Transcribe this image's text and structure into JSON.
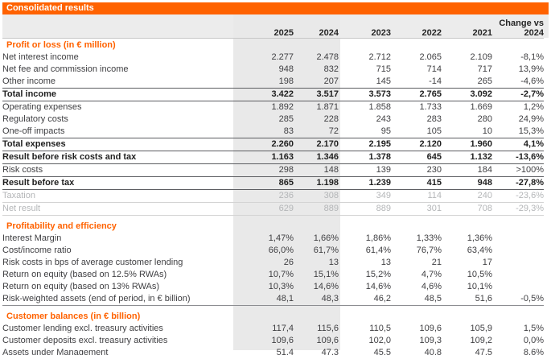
{
  "colors": {
    "accent_orange": "#FF6200",
    "band_gray": "#E9E9E9",
    "header_row_gray": "#ECECEC",
    "muted_text": "#B4B6B8"
  },
  "chart_data": {
    "type": "table",
    "title": "Consolidated results",
    "columns": [
      "2025",
      "2024",
      "2023",
      "2022",
      "2021",
      "Change vs 2024"
    ],
    "sections": [
      {
        "header": "Profit or loss (in € million)",
        "rows": [
          {
            "label": "Net interest income",
            "values": [
              "2.277",
              "2.478",
              "2.712",
              "2.065",
              "2.109",
              "-8,1%"
            ],
            "emphasis": "normal",
            "rule": "none"
          },
          {
            "label": "Net fee and commission income",
            "values": [
              "948",
              "832",
              "715",
              "714",
              "717",
              "13,9%"
            ],
            "emphasis": "normal",
            "rule": "none"
          },
          {
            "label": "Other income",
            "values": [
              "198",
              "207",
              "145",
              "-14",
              "265",
              "-4,6%"
            ],
            "emphasis": "normal",
            "rule": "none"
          },
          {
            "label": "Total income",
            "values": [
              "3.422",
              "3.517",
              "3.573",
              "2.765",
              "3.092",
              "-2,7%"
            ],
            "emphasis": "bold",
            "rule": "dark-both"
          },
          {
            "label": "Operating expenses",
            "values": [
              "1.892",
              "1.871",
              "1.858",
              "1.733",
              "1.669",
              "1,2%"
            ],
            "emphasis": "normal",
            "rule": "none"
          },
          {
            "label": "Regulatory costs",
            "values": [
              "285",
              "228",
              "243",
              "283",
              "280",
              "24,9%"
            ],
            "emphasis": "normal",
            "rule": "none"
          },
          {
            "label": "One-off impacts",
            "values": [
              "83",
              "72",
              "95",
              "105",
              "10",
              "15,3%"
            ],
            "emphasis": "normal",
            "rule": "none"
          },
          {
            "label": "Total expenses",
            "values": [
              "2.260",
              "2.170",
              "2.195",
              "2.120",
              "1.960",
              "4,1%"
            ],
            "emphasis": "bold",
            "rule": "dark-both"
          },
          {
            "label": "Result before risk costs and tax",
            "values": [
              "1.163",
              "1.346",
              "1.378",
              "645",
              "1.132",
              "-13,6%"
            ],
            "emphasis": "bold",
            "rule": "dark-both"
          },
          {
            "label": "Risk costs",
            "values": [
              "298",
              "148",
              "139",
              "230",
              "184",
              ">100%"
            ],
            "emphasis": "normal",
            "rule": "none"
          },
          {
            "label": "Result before tax",
            "values": [
              "865",
              "1.198",
              "1.239",
              "415",
              "948",
              "-27,8%"
            ],
            "emphasis": "bold",
            "rule": "dark-both"
          },
          {
            "label": "Taxation",
            "values": [
              "236",
              "308",
              "349",
              "114",
              "240",
              "-23,6%"
            ],
            "emphasis": "muted",
            "rule": "light-top"
          },
          {
            "label": "Net result",
            "values": [
              "629",
              "889",
              "889",
              "301",
              "708",
              "-29,3%"
            ],
            "emphasis": "muted",
            "rule": "light-both"
          }
        ]
      },
      {
        "header": "Profitability and efficiency",
        "rows": [
          {
            "label": "Interest Margin",
            "values": [
              "1,47%",
              "1,66%",
              "1,86%",
              "1,33%",
              "1,36%",
              ""
            ],
            "emphasis": "normal",
            "rule": "none"
          },
          {
            "label": "Cost/income ratio",
            "values": [
              "66,0%",
              "61,7%",
              "61,4%",
              "76,7%",
              "63,4%",
              ""
            ],
            "emphasis": "normal",
            "rule": "none"
          },
          {
            "label": "Risk costs in bps of average customer lending",
            "values": [
              "26",
              "13",
              "13",
              "21",
              "17",
              ""
            ],
            "emphasis": "normal",
            "rule": "none"
          },
          {
            "label": "Return on equity (based on 12.5% RWAs)",
            "values": [
              "10,7%",
              "15,1%",
              "15,2%",
              "4,7%",
              "10,5%",
              ""
            ],
            "emphasis": "normal",
            "rule": "none"
          },
          {
            "label": "Return on equity (based on 13% RWAs)",
            "values": [
              "10,3%",
              "14,6%",
              "14,6%",
              "4,6%",
              "10,1%",
              ""
            ],
            "emphasis": "normal",
            "rule": "none"
          },
          {
            "label": "Risk-weighted assets (end of period, in € billion)",
            "values": [
              "48,1",
              "48,3",
              "46,2",
              "48,5",
              "51,6",
              "-0,5%"
            ],
            "emphasis": "normal",
            "rule": "mid-bottom"
          }
        ]
      },
      {
        "header": "Customer balances (in € billion)",
        "rows": [
          {
            "label": "Customer lending excl. treasury activities",
            "values": [
              "117,4",
              "115,6",
              "110,5",
              "109,6",
              "105,9",
              "1,5%"
            ],
            "emphasis": "normal",
            "rule": "none"
          },
          {
            "label": "Customer deposits excl. treasury activities",
            "values": [
              "109,6",
              "109,6",
              "102,0",
              "109,3",
              "109,2",
              "0,0%"
            ],
            "emphasis": "normal",
            "rule": "none"
          },
          {
            "label": "Assets under Management",
            "values": [
              "51,4",
              "47,3",
              "45,5",
              "40,8",
              "47,5",
              "8,6%"
            ],
            "emphasis": "normal",
            "rule": "dark-bottom"
          }
        ]
      }
    ]
  }
}
